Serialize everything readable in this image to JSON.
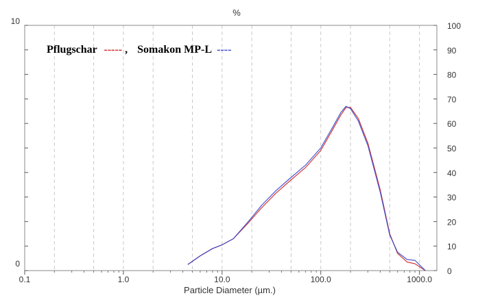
{
  "chart_data": {
    "type": "line",
    "title": "%",
    "xlabel": "Particle Diameter (µm.)",
    "x_scale": "log",
    "xlim": [
      0.1,
      1500
    ],
    "x_ticks": [
      {
        "value": 0.1,
        "label": "0.1"
      },
      {
        "value": 1,
        "label": "1.0"
      },
      {
        "value": 10,
        "label": "10.0"
      },
      {
        "value": 100,
        "label": "100.0"
      },
      {
        "value": 1000,
        "label": "1000.0"
      }
    ],
    "left_axis": {
      "ticks": [
        "0",
        "10"
      ]
    },
    "right_axis": {
      "ylim": [
        0,
        100
      ],
      "ticks": [
        "0",
        "10",
        "20",
        "30",
        "40",
        "50",
        "60",
        "70",
        "80",
        "90",
        "100"
      ]
    },
    "grid": "vertical-dashed",
    "legend": {
      "placement": "top-left",
      "items": [
        {
          "label": "Pflugschar",
          "marker": "-----",
          "suffix": ",",
          "color": "#cc2222"
        },
        {
          "label": "Somakon MP-L",
          "marker": "----",
          "suffix": "",
          "color": "#3344cc"
        }
      ]
    },
    "series": [
      {
        "name": "Pflugschar",
        "color": "#cc2222",
        "x": [
          4.5,
          6,
          8,
          10,
          13,
          18,
          25,
          35,
          50,
          70,
          100,
          130,
          160,
          180,
          200,
          240,
          300,
          400,
          500,
          600,
          750,
          900,
          1050,
          1150
        ],
        "y": [
          2.5,
          6,
          9,
          10.5,
          13,
          19,
          25.5,
          31.5,
          37,
          42,
          49,
          57,
          63.5,
          66.5,
          66.5,
          62,
          52,
          33,
          15,
          7,
          3.5,
          2.8,
          1,
          0
        ]
      },
      {
        "name": "Somakon MP-L",
        "color": "#3344cc",
        "x": [
          4.5,
          6,
          8,
          10,
          13,
          18,
          25,
          35,
          50,
          70,
          100,
          130,
          160,
          180,
          200,
          240,
          300,
          400,
          500,
          600,
          750,
          900,
          1050,
          1150
        ],
        "y": [
          2.5,
          6,
          9,
          10.5,
          13,
          19.5,
          26.5,
          32.5,
          38,
          43,
          50,
          58,
          64.5,
          67,
          66,
          61,
          51,
          32,
          14.5,
          7.5,
          4.5,
          4.2,
          1.5,
          0
        ]
      }
    ]
  }
}
